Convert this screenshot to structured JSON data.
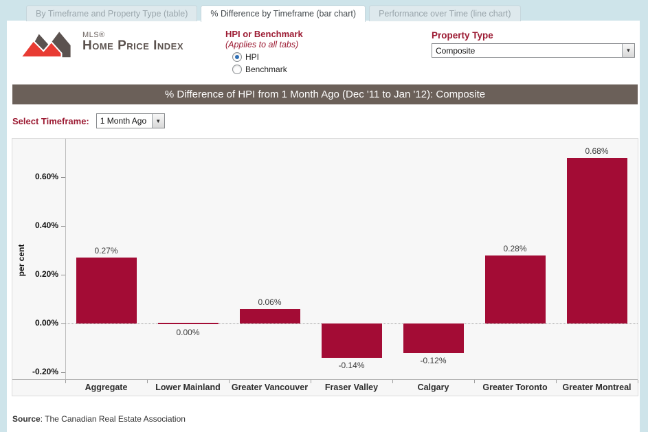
{
  "tabs": [
    {
      "id": "tab-timeframe-property-table",
      "label": "By Timeframe and Property Type (table)",
      "active": false
    },
    {
      "id": "tab-difference-bar-chart",
      "label": "% Difference by Timeframe (bar chart)",
      "active": true
    },
    {
      "id": "tab-performance-line-chart",
      "label": "Performance over Time (line chart)",
      "active": false
    }
  ],
  "logo": {
    "mls": "MLS®",
    "title": "Home Price Index"
  },
  "controls": {
    "hpi_benchmark": {
      "label": "HPI or Benchmark",
      "note": "(Applies to all tabs)",
      "options": [
        {
          "id": "hpi",
          "label": "HPI",
          "selected": true
        },
        {
          "id": "benchmark",
          "label": "Benchmark",
          "selected": false
        }
      ]
    },
    "property_type": {
      "label": "Property Type",
      "value": "Composite"
    },
    "timeframe": {
      "label": "Select Timeframe:",
      "value": "1 Month Ago"
    }
  },
  "title_bar": "% Difference of HPI from 1 Month Ago (Dec '11 to Jan '12): Composite",
  "chart_data": {
    "type": "bar",
    "title": "% Difference of HPI from 1 Month Ago (Dec '11 to Jan '12): Composite",
    "xlabel": "",
    "ylabel": "per cent",
    "categories": [
      "Aggregate",
      "Lower Mainland",
      "Greater Vancouver",
      "Fraser Valley",
      "Calgary",
      "Greater Toronto",
      "Greater Montreal"
    ],
    "values": [
      0.27,
      0.0,
      0.06,
      -0.14,
      -0.12,
      0.28,
      0.68
    ],
    "value_labels": [
      "0.27%",
      "0.00%",
      "0.06%",
      "-0.14%",
      "-0.12%",
      "0.28%",
      "0.68%"
    ],
    "yticks": [
      {
        "v": 0.6,
        "label": "0.60%"
      },
      {
        "v": 0.4,
        "label": "0.40%"
      },
      {
        "v": 0.2,
        "label": "0.20%"
      },
      {
        "v": 0.0,
        "label": "0.00%"
      },
      {
        "v": -0.2,
        "label": "-0.20%"
      }
    ],
    "ylim": [
      -0.23,
      0.76
    ],
    "grid": false,
    "legend": "none",
    "bar_color": "#a30c35"
  },
  "footer": {
    "source_label": "Source",
    "source_rest": ": The Canadian Real Estate Association"
  },
  "colors": {
    "accent_red": "#9c1b33",
    "bar_crimson": "#a30c35",
    "title_bar_bg": "#6b6059",
    "page_bg": "#cee4ea"
  }
}
